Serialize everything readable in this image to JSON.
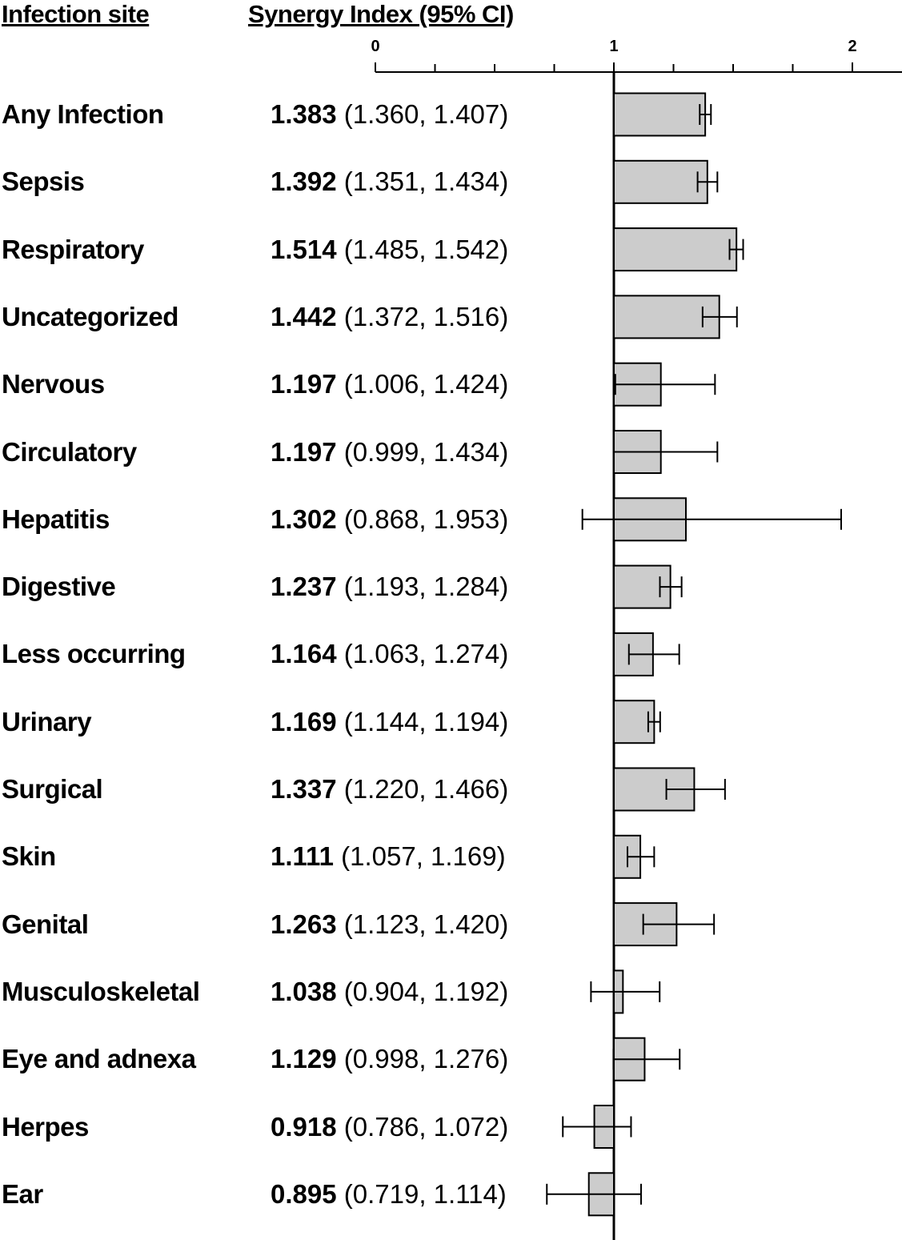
{
  "headers": {
    "site": "Infection site",
    "synergy": "Synergy Index (95% CI)"
  },
  "chart_data": {
    "type": "bar",
    "orientation": "horizontal",
    "baseline": 1,
    "xlim": [
      0,
      2.2
    ],
    "x_ticks": [
      0,
      0.25,
      0.5,
      0.75,
      1,
      1.25,
      1.5,
      1.75,
      2
    ],
    "x_tick_labels": [
      "0",
      "",
      "",
      "",
      "1",
      "",
      "",
      "",
      "2"
    ],
    "grid": false,
    "legend": "none",
    "bar_color": "#cccccc",
    "rows": [
      {
        "site": "Any Infection",
        "estimate": "1.383",
        "ci": "(1.360, 1.407)",
        "value": 1.383,
        "lower": 1.36,
        "upper": 1.407
      },
      {
        "site": "Sepsis",
        "estimate": "1.392",
        "ci": "(1.351, 1.434)",
        "value": 1.392,
        "lower": 1.351,
        "upper": 1.434
      },
      {
        "site": "Respiratory",
        "estimate": "1.514",
        "ci": "(1.485, 1.542)",
        "value": 1.514,
        "lower": 1.485,
        "upper": 1.542
      },
      {
        "site": "Uncategorized",
        "estimate": "1.442",
        "ci": "(1.372, 1.516)",
        "value": 1.442,
        "lower": 1.372,
        "upper": 1.516
      },
      {
        "site": "Nervous",
        "estimate": "1.197",
        "ci": "(1.006, 1.424)",
        "value": 1.197,
        "lower": 1.006,
        "upper": 1.424
      },
      {
        "site": "Circulatory",
        "estimate": "1.197",
        "ci": "(0.999, 1.434)",
        "value": 1.197,
        "lower": 0.999,
        "upper": 1.434
      },
      {
        "site": "Hepatitis",
        "estimate": "1.302",
        "ci": "(0.868, 1.953)",
        "value": 1.302,
        "lower": 0.868,
        "upper": 1.953
      },
      {
        "site": "Digestive",
        "estimate": "1.237",
        "ci": "(1.193, 1.284)",
        "value": 1.237,
        "lower": 1.193,
        "upper": 1.284
      },
      {
        "site": "Less occurring",
        "estimate": "1.164",
        "ci": "(1.063, 1.274)",
        "value": 1.164,
        "lower": 1.063,
        "upper": 1.274
      },
      {
        "site": "Urinary",
        "estimate": "1.169",
        "ci": "(1.144, 1.194)",
        "value": 1.169,
        "lower": 1.144,
        "upper": 1.194
      },
      {
        "site": "Surgical",
        "estimate": "1.337",
        "ci": "(1.220, 1.466)",
        "value": 1.337,
        "lower": 1.22,
        "upper": 1.466
      },
      {
        "site": "Skin",
        "estimate": "1.111",
        "ci": "(1.057, 1.169)",
        "value": 1.111,
        "lower": 1.057,
        "upper": 1.169
      },
      {
        "site": "Genital",
        "estimate": "1.263",
        "ci": "(1.123, 1.420)",
        "value": 1.263,
        "lower": 1.123,
        "upper": 1.42
      },
      {
        "site": "Musculoskeletal",
        "estimate": "1.038",
        "ci": "(0.904, 1.192)",
        "value": 1.038,
        "lower": 0.904,
        "upper": 1.192
      },
      {
        "site": "Eye and adnexa",
        "estimate": "1.129",
        "ci": "(0.998, 1.276)",
        "value": 1.129,
        "lower": 0.998,
        "upper": 1.276
      },
      {
        "site": "Herpes",
        "estimate": "0.918",
        "ci": "(0.786, 1.072)",
        "value": 0.918,
        "lower": 0.786,
        "upper": 1.072
      },
      {
        "site": "Ear",
        "estimate": "0.895",
        "ci": "(0.719, 1.114)",
        "value": 0.895,
        "lower": 0.719,
        "upper": 1.114
      }
    ]
  }
}
